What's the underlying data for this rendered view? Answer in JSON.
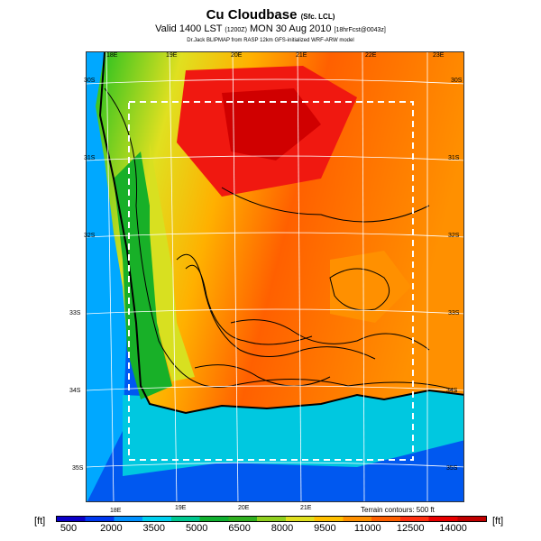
{
  "header": {
    "title": "Cu Cloudbase",
    "title_suffix": "(Sfc. LCL)",
    "valid_prefix": "Valid 1400 LST",
    "valid_code": "(1200Z)",
    "valid_date": "MON 30 Aug 2010",
    "valid_suffix": "[18hrFcst@0043z]",
    "credit": "Dr.Jack BLIPMAP from RASP 12km GFS-initialized WRF-ARW model"
  },
  "map": {
    "lon_labels": [
      "18E",
      "19E",
      "20E",
      "21E",
      "22E",
      "23E"
    ],
    "lat_labels": [
      "30S",
      "31S",
      "32S",
      "33S",
      "34S",
      "35S"
    ],
    "terrain_note": "Terrain contours: 500 ft"
  },
  "colorbar": {
    "unit": "[ft]",
    "labels": [
      "500",
      "2000",
      "3500",
      "5000",
      "6500",
      "8000",
      "9500",
      "11000",
      "12500",
      "14000"
    ],
    "colors": [
      "#0b00c8",
      "#0038f0",
      "#0090ff",
      "#00d0f0",
      "#00c890",
      "#10b030",
      "#30b020",
      "#90d020",
      "#e0e020",
      "#ffc000",
      "#ff9000",
      "#ff6000",
      "#ff3010",
      "#e80000",
      "#c00000"
    ]
  }
}
